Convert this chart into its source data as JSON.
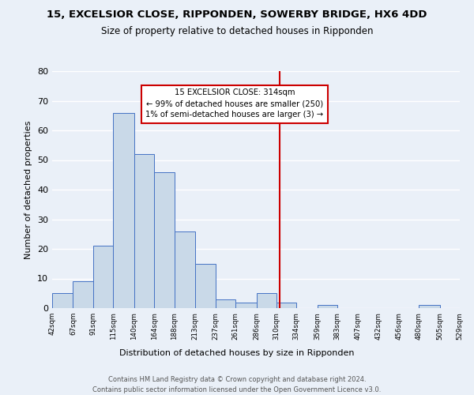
{
  "title1": "15, EXCELSIOR CLOSE, RIPPONDEN, SOWERBY BRIDGE, HX6 4DD",
  "title2": "Size of property relative to detached houses in Ripponden",
  "xlabel": "Distribution of detached houses by size in Ripponden",
  "ylabel": "Number of detached properties",
  "bar_edges": [
    42,
    67,
    91,
    115,
    140,
    164,
    188,
    213,
    237,
    261,
    286,
    310,
    334,
    359,
    383,
    407,
    432,
    456,
    480,
    505,
    529
  ],
  "bar_heights": [
    5,
    9,
    21,
    66,
    52,
    46,
    26,
    15,
    3,
    2,
    5,
    2,
    0,
    1,
    0,
    0,
    0,
    0,
    1,
    0
  ],
  "bar_color": "#c9d9e8",
  "bar_edge_color": "#4472c4",
  "property_value": 314,
  "vline_color": "#cc0000",
  "annotation_line1": "15 EXCELSIOR CLOSE: 314sqm",
  "annotation_line2": "← 99% of detached houses are smaller (250)",
  "annotation_line3": "1% of semi-detached houses are larger (3) →",
  "annotation_box_color": "#cc0000",
  "ylim": [
    0,
    80
  ],
  "yticks": [
    0,
    10,
    20,
    30,
    40,
    50,
    60,
    70,
    80
  ],
  "tick_labels": [
    "42sqm",
    "67sqm",
    "91sqm",
    "115sqm",
    "140sqm",
    "164sqm",
    "188sqm",
    "213sqm",
    "237sqm",
    "261sqm",
    "286sqm",
    "310sqm",
    "334sqm",
    "359sqm",
    "383sqm",
    "407sqm",
    "432sqm",
    "456sqm",
    "480sqm",
    "505sqm",
    "529sqm"
  ],
  "footer": "Contains HM Land Registry data © Crown copyright and database right 2024.\nContains public sector information licensed under the Open Government Licence v3.0.",
  "bg_color": "#eaf0f8",
  "grid_color": "#ffffff"
}
